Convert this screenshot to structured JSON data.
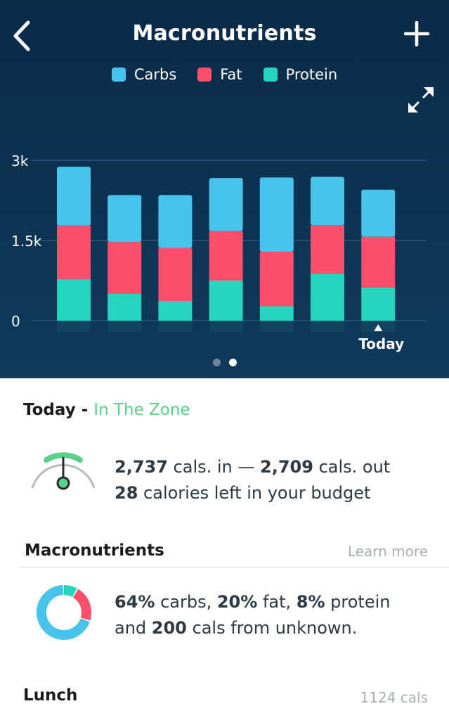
{
  "header": {
    "title": "Macronutrients"
  },
  "colors": {
    "carbs": "#48c3ec",
    "fat": "#fb4f6b",
    "protein": "#25d5bd"
  },
  "icons": {
    "back": "chevron-left-icon",
    "add": "plus-icon",
    "expand": "expand-arrows-icon"
  },
  "chart_data": {
    "type": "bar",
    "stacked": true,
    "categories": [
      "",
      "",
      "",
      "",
      "",
      "",
      ""
    ],
    "series": [
      {
        "name": "Protein",
        "values": [
          780,
          500,
          370,
          750,
          270,
          880,
          620
        ]
      },
      {
        "name": "Fat",
        "values": [
          1000,
          970,
          990,
          930,
          1020,
          910,
          950
        ]
      },
      {
        "name": "Carbs",
        "values": [
          1100,
          880,
          990,
          990,
          1390,
          900,
          880
        ]
      }
    ],
    "ytick_labels": [
      "0",
      "1.5k",
      "3k"
    ],
    "ytick_values": [
      0,
      1500,
      3000
    ],
    "ylim": [
      0,
      3000
    ],
    "today_label": "Today",
    "legend": [
      "Carbs",
      "Fat",
      "Protein"
    ],
    "grid": true,
    "legend_position": "top"
  },
  "pager": {
    "count": 2,
    "active": 1
  },
  "today": {
    "label": "Today",
    "separator": " - ",
    "status": "In The Zone",
    "cals_in": "2,737",
    "cals_in_unit": " cals. in — ",
    "cals_out": "2,709",
    "cals_out_unit": " cals. out",
    "left": "28",
    "left_text": " calories left in your budget"
  },
  "macros": {
    "title": "Macronutrients",
    "learn_more": "Learn more",
    "carbs_pct": "64%",
    "carbs_label": " carbs, ",
    "fat_pct": "20%",
    "fat_label": " fat, ",
    "protein_pct": "8%",
    "protein_label": " protein",
    "and": "and ",
    "unknown_cals": "200",
    "unknown_label": " cals from unknown.",
    "donut": {
      "carbs": 64,
      "fat": 20,
      "protein": 8
    }
  },
  "lunch": {
    "title": "Lunch",
    "cals": "1124 cals"
  }
}
